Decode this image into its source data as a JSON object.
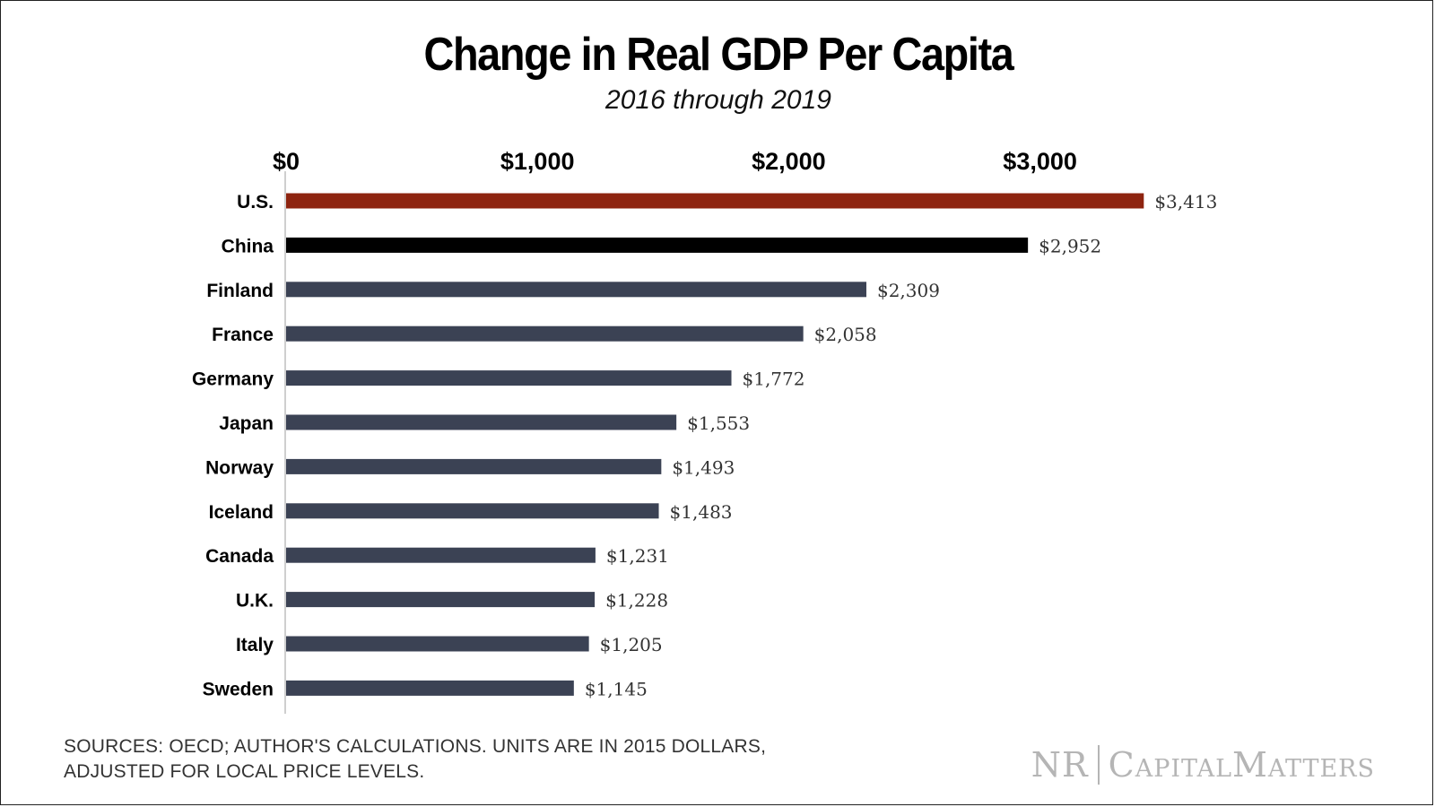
{
  "chart_data": {
    "type": "bar",
    "orientation": "horizontal",
    "title": "Change in Real GDP Per Capita",
    "subtitle": "2016 through 2019",
    "categories": [
      "U.S.",
      "China",
      "Finland",
      "France",
      "Germany",
      "Japan",
      "Norway",
      "Iceland",
      "Canada",
      "U.K.",
      "Italy",
      "Sweden"
    ],
    "values": [
      3413,
      2952,
      2309,
      2058,
      1772,
      1553,
      1493,
      1483,
      1231,
      1228,
      1205,
      1145
    ],
    "value_labels": [
      "$3,413",
      "$2,952",
      "$2,309",
      "$2,058",
      "$1,772",
      "$1,553",
      "$1,493",
      "$1,483",
      "$1,231",
      "$1,228",
      "$1,205",
      "$1,145"
    ],
    "bar_colors": [
      "#8e2410",
      "#000000",
      "#3b4254",
      "#3b4254",
      "#3b4254",
      "#3b4254",
      "#3b4254",
      "#3b4254",
      "#3b4254",
      "#3b4254",
      "#3b4254",
      "#3b4254"
    ],
    "xaxis": {
      "position": "top",
      "ticks": [
        0,
        1000,
        2000,
        3000
      ],
      "tick_labels": [
        "$0",
        "$1,000",
        "$2,000",
        "$3,000"
      ],
      "range": [
        0,
        3413
      ]
    },
    "grid": false,
    "legend": "none"
  },
  "footer": {
    "source_line1": "SOURCES: OECD; AUTHOR'S CALCULATIONS. UNITS ARE IN 2015 DOLLARS,",
    "source_line2": "ADJUSTED FOR LOCAL PRICE LEVELS.",
    "logo_nr": "NR",
    "logo_brand": "CapitalMatters"
  }
}
